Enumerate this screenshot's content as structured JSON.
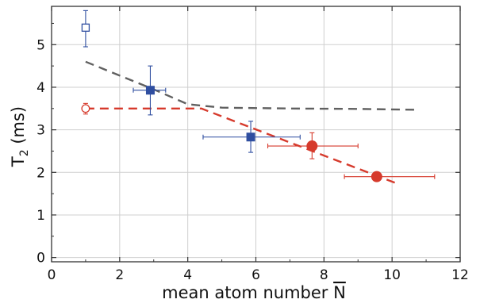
{
  "chart_data": {
    "type": "scatter",
    "title": "",
    "xlabel": "mean atom number ",
    "xlabel_symbol": "N",
    "ylabel_main": "T",
    "ylabel_sub": "2",
    "ylabel_unit": " (ms)",
    "xlim": [
      0,
      12
    ],
    "ylim": [
      -0.1,
      5.9
    ],
    "xticks": [
      0,
      2,
      4,
      6,
      8,
      10,
      12
    ],
    "yticks": [
      0,
      1,
      2,
      3,
      4,
      5
    ],
    "grid": true,
    "colors": {
      "red": "#d63a2c",
      "blue": "#2f4ea0",
      "gray": "#606060",
      "grid": "#cfcfcf"
    },
    "series": [
      {
        "marker": "open-square",
        "color": "#2f4ea0",
        "points": [
          {
            "x": 1.0,
            "y": 5.4,
            "yerr": [
              4.95,
              5.8
            ]
          }
        ]
      },
      {
        "marker": "filled-square",
        "color": "#2f4ea0",
        "points": [
          {
            "x": 2.9,
            "y": 3.93,
            "xerr": [
              2.4,
              3.35
            ],
            "yerr": [
              3.35,
              4.5
            ]
          },
          {
            "x": 5.85,
            "y": 2.83,
            "xerr": [
              4.45,
              7.3
            ],
            "yerr": [
              2.47,
              3.2
            ]
          }
        ]
      },
      {
        "marker": "open-circle",
        "color": "#d63a2c",
        "points": [
          {
            "x": 1.0,
            "y": 3.5,
            "yerr": [
              3.37,
              3.62
            ]
          }
        ]
      },
      {
        "marker": "filled-circle",
        "color": "#d63a2c",
        "points": [
          {
            "x": 7.65,
            "y": 2.62,
            "xerr": [
              6.35,
              9.0
            ],
            "yerr": [
              2.32,
              2.93
            ]
          },
          {
            "x": 9.55,
            "y": 1.9,
            "xerr": [
              8.6,
              11.25
            ],
            "yerr": [
              1.82,
              1.98
            ]
          }
        ]
      }
    ],
    "lines": [
      {
        "style": "dashed",
        "color": "#606060",
        "x": [
          1.0,
          3.0,
          4.0,
          5.0,
          7.0,
          9.0,
          10.8
        ],
        "y": [
          4.6,
          3.95,
          3.6,
          3.52,
          3.5,
          3.49,
          3.47
        ]
      },
      {
        "style": "dashed",
        "color": "#d63a2c",
        "x": [
          1.0,
          4.4,
          10.2
        ],
        "y": [
          3.5,
          3.5,
          1.72
        ]
      }
    ]
  }
}
